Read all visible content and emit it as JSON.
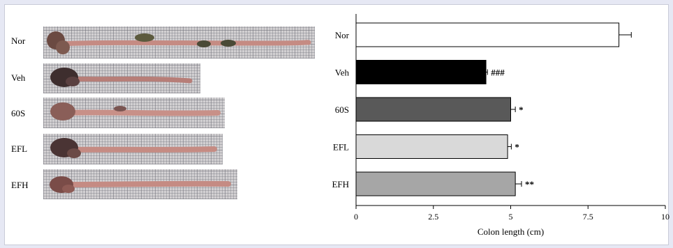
{
  "specimens": [
    {
      "label": "Nor"
    },
    {
      "label": "Veh"
    },
    {
      "label": "60S"
    },
    {
      "label": "EFL"
    },
    {
      "label": "EFH"
    }
  ],
  "colors": {
    "background": "#e6e8f4",
    "tissue": "#c58b83",
    "cecum": "#6b4a42"
  },
  "chart_data": {
    "type": "bar",
    "orientation": "horizontal",
    "categories": [
      "Nor",
      "Veh",
      "60S",
      "EFL",
      "EFH"
    ],
    "values": [
      8.5,
      4.2,
      5.0,
      4.9,
      5.15
    ],
    "errors": [
      0.4,
      0.05,
      0.15,
      0.12,
      0.2
    ],
    "annotations": [
      "",
      "###",
      "*",
      "*",
      "**"
    ],
    "bar_colors": [
      "#ffffff",
      "#000000",
      "#595959",
      "#d9d9d9",
      "#a6a6a6"
    ],
    "xlabel": "Colon length (cm)",
    "xlim": [
      0,
      10
    ],
    "xticks": [
      0,
      2.5,
      5,
      7.5,
      10
    ],
    "xtick_labels": [
      "0",
      "2.5",
      "5",
      "7.5",
      "10"
    ],
    "grid": false
  }
}
